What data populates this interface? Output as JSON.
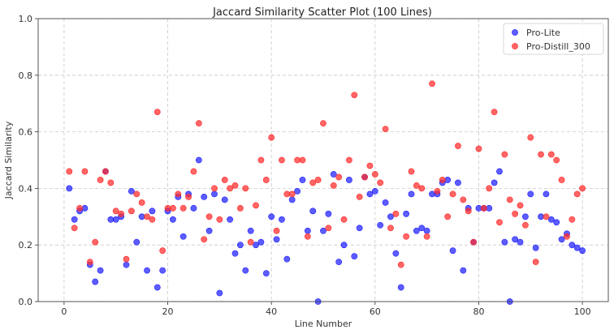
{
  "chart_data": {
    "type": "scatter",
    "title": "Jaccard Similarity Scatter Plot (100 Lines)",
    "xlabel": "Line Number",
    "ylabel": "Jaccard Similarity",
    "xlim": [
      -5,
      105
    ],
    "ylim": [
      0.0,
      1.0
    ],
    "xticks": [
      0,
      20,
      40,
      60,
      80,
      100
    ],
    "xtick_labels": [
      "0",
      "20",
      "40",
      "60",
      "80",
      "100"
    ],
    "yticks": [
      0.0,
      0.2,
      0.4,
      0.6,
      0.8,
      1.0
    ],
    "ytick_labels": [
      "0.0",
      "0.2",
      "0.4",
      "0.6",
      "0.8",
      "1.0"
    ],
    "grid": true,
    "legend_position": "top-right",
    "series": [
      {
        "name": "Pro-Lite",
        "color": "#1f1fff",
        "x": [
          1,
          2,
          3,
          4,
          5,
          6,
          7,
          8,
          9,
          10,
          11,
          12,
          13,
          14,
          15,
          16,
          17,
          18,
          19,
          20,
          21,
          22,
          23,
          24,
          25,
          26,
          27,
          28,
          29,
          30,
          31,
          32,
          33,
          34,
          35,
          36,
          37,
          38,
          39,
          40,
          41,
          42,
          43,
          44,
          45,
          46,
          47,
          48,
          49,
          50,
          51,
          52,
          53,
          54,
          55,
          56,
          57,
          58,
          59,
          60,
          61,
          62,
          63,
          64,
          65,
          66,
          67,
          68,
          69,
          70,
          71,
          72,
          73,
          74,
          75,
          76,
          77,
          78,
          79,
          80,
          81,
          82,
          83,
          84,
          85,
          86,
          87,
          88,
          89,
          90,
          91,
          92,
          93,
          94,
          95,
          96,
          97,
          98,
          99,
          100
        ],
        "y": [
          0.4,
          0.29,
          0.32,
          0.33,
          0.13,
          0.07,
          0.11,
          0.46,
          0.29,
          0.29,
          0.3,
          0.13,
          0.39,
          0.21,
          0.3,
          0.11,
          0.32,
          0.05,
          0.11,
          0.32,
          0.29,
          0.37,
          0.23,
          0.38,
          0.33,
          0.5,
          0.37,
          0.25,
          0.38,
          0.03,
          0.36,
          0.29,
          0.17,
          0.2,
          0.11,
          0.25,
          0.2,
          0.21,
          0.1,
          0.3,
          0.22,
          0.29,
          0.15,
          0.36,
          0.39,
          0.43,
          0.25,
          0.32,
          0.0,
          0.25,
          0.31,
          0.45,
          0.14,
          0.2,
          0.43,
          0.16,
          0.26,
          0.44,
          0.38,
          0.39,
          0.27,
          0.35,
          0.3,
          0.17,
          0.05,
          0.31,
          0.38,
          0.25,
          0.26,
          0.25,
          0.38,
          0.38,
          0.42,
          0.43,
          0.18,
          0.42,
          0.11,
          0.33,
          0.21,
          0.33,
          0.33,
          0.33,
          0.42,
          0.46,
          0.21,
          0.0,
          0.22,
          0.21,
          0.3,
          0.38,
          0.19,
          0.3,
          0.38,
          0.29,
          0.28,
          0.22,
          0.24,
          0.2,
          0.19,
          0.18
        ]
      },
      {
        "name": "Pro-Distill_300",
        "color": "#ff2a2a",
        "x": [
          1,
          2,
          3,
          4,
          5,
          6,
          7,
          8,
          9,
          10,
          11,
          12,
          13,
          14,
          15,
          16,
          17,
          18,
          19,
          20,
          21,
          22,
          23,
          24,
          25,
          26,
          27,
          28,
          29,
          30,
          31,
          32,
          33,
          34,
          35,
          36,
          37,
          38,
          39,
          40,
          41,
          42,
          43,
          44,
          45,
          46,
          47,
          48,
          49,
          50,
          51,
          52,
          53,
          54,
          55,
          56,
          57,
          58,
          59,
          60,
          61,
          62,
          63,
          64,
          65,
          66,
          67,
          68,
          69,
          70,
          71,
          72,
          73,
          74,
          75,
          76,
          77,
          78,
          79,
          80,
          81,
          82,
          83,
          84,
          85,
          86,
          87,
          88,
          89,
          90,
          91,
          92,
          93,
          94,
          95,
          96,
          97,
          98,
          99,
          100
        ],
        "y": [
          0.46,
          0.26,
          0.33,
          0.46,
          0.14,
          0.21,
          0.43,
          0.46,
          0.42,
          0.32,
          0.31,
          0.15,
          0.32,
          0.38,
          0.35,
          0.3,
          0.29,
          0.67,
          0.18,
          0.33,
          0.33,
          0.38,
          0.33,
          0.37,
          0.46,
          0.63,
          0.22,
          0.3,
          0.4,
          0.29,
          0.43,
          0.4,
          0.41,
          0.33,
          0.4,
          0.21,
          0.34,
          0.5,
          0.43,
          0.58,
          0.25,
          0.5,
          0.38,
          0.38,
          0.5,
          0.5,
          0.23,
          0.42,
          0.43,
          0.63,
          0.26,
          0.41,
          0.44,
          0.29,
          0.5,
          0.73,
          0.37,
          0.44,
          0.48,
          0.45,
          0.42,
          0.61,
          0.26,
          0.31,
          0.13,
          0.23,
          0.46,
          0.41,
          0.4,
          0.23,
          0.77,
          0.39,
          0.43,
          0.3,
          0.38,
          0.55,
          0.36,
          0.32,
          0.21,
          0.54,
          0.33,
          0.4,
          0.67,
          0.28,
          0.52,
          0.36,
          0.31,
          0.34,
          0.27,
          0.58,
          0.14,
          0.52,
          0.3,
          0.52,
          0.5,
          0.43,
          0.23,
          0.29,
          0.38,
          0.4
        ]
      }
    ]
  }
}
